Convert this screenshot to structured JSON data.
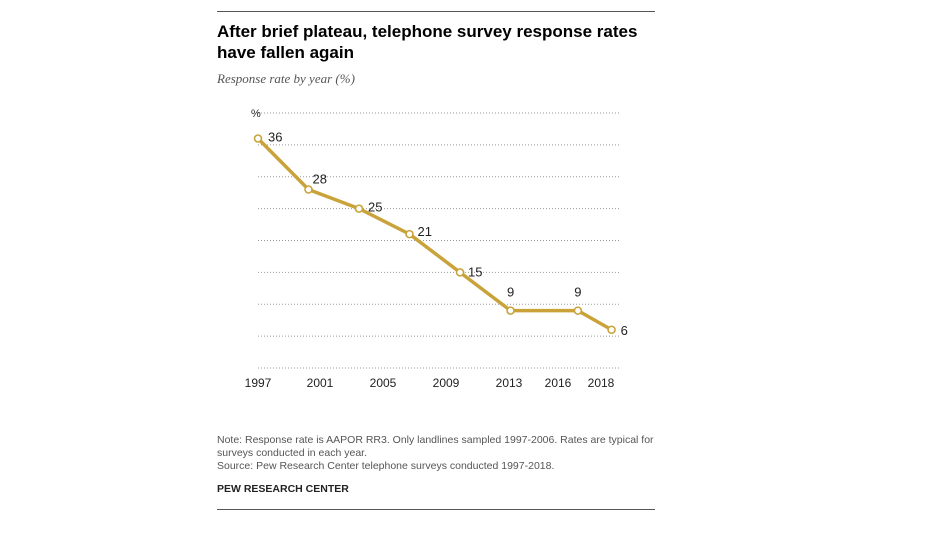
{
  "header": {
    "title": "After brief plateau, telephone survey response rates have fallen again",
    "subtitle": "Response rate by year (%)"
  },
  "chart_data": {
    "type": "line",
    "ylabel": "%",
    "ylim": [
      0,
      40
    ],
    "grid": true,
    "x_tick_labels": [
      "1997",
      "2001",
      "2005",
      "2009",
      "2013",
      "2016",
      "2018"
    ],
    "series": [
      {
        "color": "#c9a33a",
        "points": [
          {
            "x": 1997,
            "y": 36,
            "label": "36"
          },
          {
            "x": 2000,
            "y": 28,
            "label": "28"
          },
          {
            "x": 2003,
            "y": 25,
            "label": "25"
          },
          {
            "x": 2006,
            "y": 21,
            "label": "21"
          },
          {
            "x": 2009,
            "y": 15,
            "label": "15"
          },
          {
            "x": 2012,
            "y": 9,
            "label": "9"
          },
          {
            "x": 2016,
            "y": 9,
            "label": "9"
          },
          {
            "x": 2018,
            "y": 6,
            "label": "6"
          }
        ]
      }
    ]
  },
  "footer": {
    "note": "Note: Response rate is AAPOR RR3. Only landlines sampled 1997-2006. Rates are typical for surveys conducted in each year.",
    "source": "Source: Pew Research Center telephone surveys conducted 1997-2018.",
    "brand": "PEW RESEARCH CENTER"
  }
}
